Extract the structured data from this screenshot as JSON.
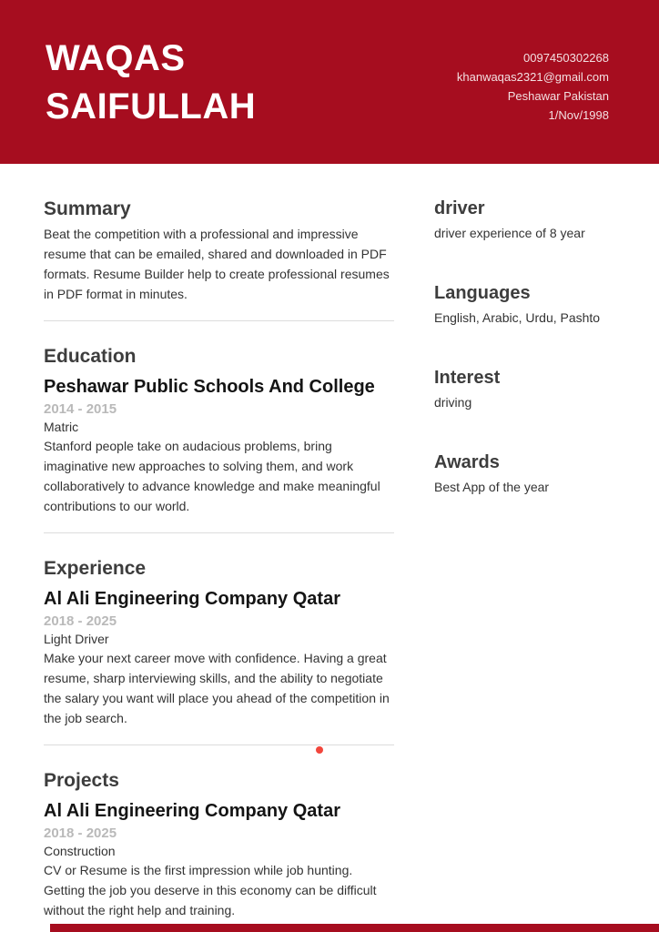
{
  "colors": {
    "header_red": "#a60d1f",
    "accent_dot": "#f2463c",
    "divider": "#dcdcdc",
    "heading": "#3d3d3d",
    "title": "#141414",
    "date": "#b9b9b9",
    "body": "#333333"
  },
  "header": {
    "name_line1": "WAQAS",
    "name_line2": "SAIFULLAH",
    "phone": "0097450302268",
    "email": "khanwaqas2321@gmail.com",
    "location": "Peshawar Pakistan",
    "birthdate": "1/Nov/1998"
  },
  "left": {
    "summary": {
      "heading": "Summary",
      "text": "Beat the competition with a professional and impressive resume that can be emailed, shared and downloaded in PDF formats. Resume Builder help to create professional resumes in PDF format in minutes."
    },
    "education": {
      "heading": "Education",
      "item": {
        "title": "Peshawar Public Schools And College",
        "period": "2014 - 2015",
        "subtitle": "Matric",
        "description": "Stanford people take on audacious problems, bring imaginative new approaches to solving them, and work collaboratively to advance knowledge and make meaningful contributions to our world."
      }
    },
    "experience": {
      "heading": "Experience",
      "item": {
        "title": "Al Ali Engineering Company Qatar",
        "period": "2018 - 2025",
        "subtitle": "Light Driver",
        "description": "Make your next career move with confidence. Having a great resume, sharp interviewing skills, and the ability to negotiate the salary you want will place you ahead of the competition in the job search."
      }
    },
    "projects": {
      "heading": "Projects",
      "item": {
        "title": "Al Ali Engineering Company Qatar",
        "period": "2018 - 2025",
        "subtitle": "Construction",
        "description": "CV or Resume is the first impression while job hunting. Getting the job you deserve in this economy can be difficult without the right help and training."
      }
    }
  },
  "right": {
    "driver": {
      "heading": "driver",
      "text": "driver experience of 8 year"
    },
    "languages": {
      "heading": "Languages",
      "text": "English, Arabic, Urdu, Pashto"
    },
    "interest": {
      "heading": "Interest",
      "text": "driving"
    },
    "awards": {
      "heading": "Awards",
      "text": "Best App of the year"
    }
  }
}
